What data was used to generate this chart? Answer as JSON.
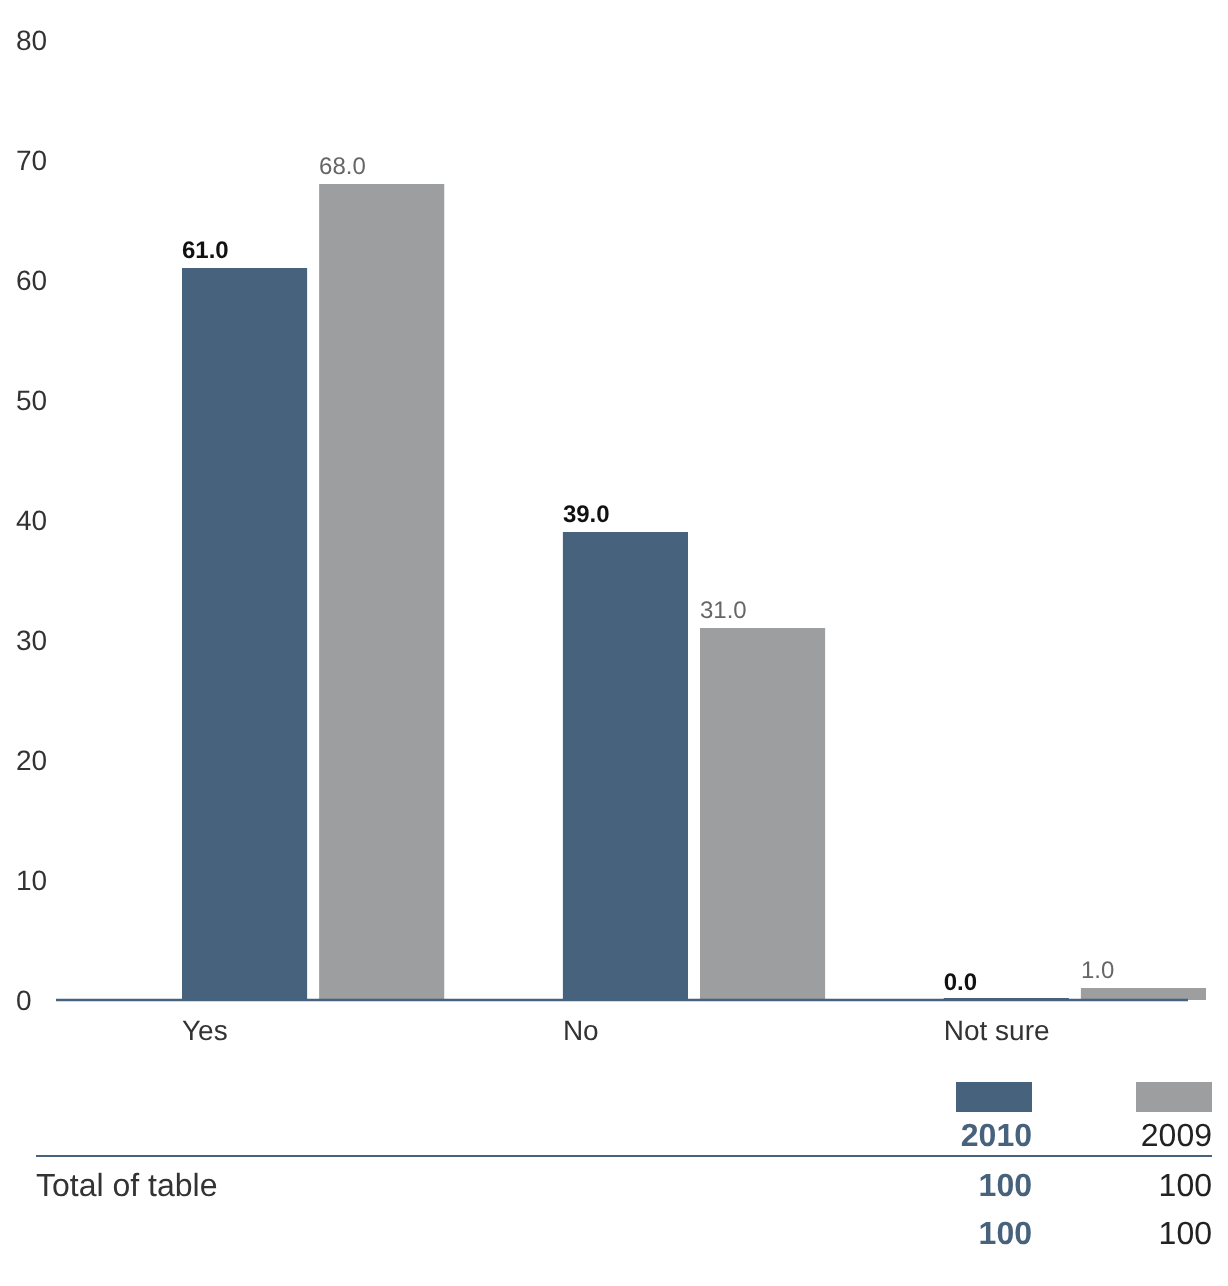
{
  "chart_data": {
    "type": "bar",
    "categories": [
      "Yes",
      "No",
      "Not sure"
    ],
    "series": [
      {
        "name": "2010",
        "color": "#46627c",
        "values": [
          61.0,
          39.0,
          0.0
        ],
        "value_labels": [
          "61.0",
          "39.0",
          "0.0"
        ]
      },
      {
        "name": "2009",
        "color": "#9d9ea0",
        "values": [
          68.0,
          31.0,
          1.0
        ],
        "value_labels": [
          "68.0",
          "31.0",
          "1.0"
        ]
      }
    ],
    "ylim": [
      0,
      80
    ],
    "yticks": [
      0,
      10,
      20,
      30,
      40,
      50,
      60,
      70,
      80
    ],
    "grid": false,
    "legend": "bottom right",
    "annotations": [
      "Total of table",
      "100",
      "100",
      "100",
      "100"
    ]
  }
}
